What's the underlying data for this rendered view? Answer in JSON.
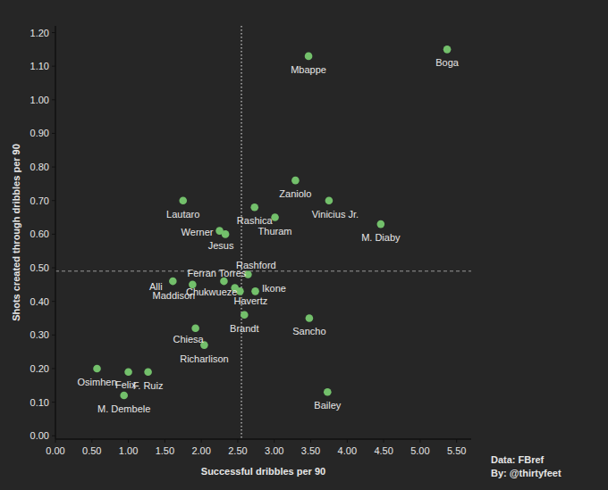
{
  "chart_data": {
    "type": "scatter",
    "x_label": "Successful dribbles per 90",
    "y_label": "Shots created through dribbles per 90",
    "annotations": [
      "Data: FBref",
      "By: @thirtyfeet"
    ],
    "labels": [
      "Boga",
      "Mbappe",
      "Zaniolo",
      "Vinicius Jr.",
      "Rashica",
      "Thuram",
      "M. Diaby",
      "Lautaro",
      "Werner",
      "Jesus",
      "Rashford",
      "Alli",
      "Maddison",
      "Ferran Torres",
      "Chukwueze",
      "Havertz",
      "Ikone",
      "Brandt",
      "Sancho",
      "Chiesa",
      "Richarlison",
      "Osimhen",
      "Felix",
      "F. Ruiz",
      "M. Dembele",
      "Bailey"
    ],
    "x": [
      5.37,
      3.47,
      3.29,
      3.75,
      2.73,
      3.01,
      4.46,
      1.75,
      2.25,
      2.33,
      2.64,
      1.61,
      1.88,
      2.31,
      2.46,
      2.53,
      2.74,
      2.59,
      3.48,
      1.92,
      2.04,
      0.57,
      1.0,
      1.27,
      0.94,
      3.73
    ],
    "values": [
      1.15,
      1.13,
      0.76,
      0.7,
      0.68,
      0.65,
      0.63,
      0.7,
      0.61,
      0.6,
      0.48,
      0.46,
      0.45,
      0.46,
      0.44,
      0.43,
      0.43,
      0.36,
      0.35,
      0.32,
      0.27,
      0.2,
      0.19,
      0.19,
      0.12,
      0.13
    ],
    "color": "#73c06b",
    "reference_x": 2.55,
    "reference_y": 0.49,
    "xlim": [
      0,
      5.7
    ],
    "ylim": [
      -0.01,
      1.22
    ],
    "xticks": [
      {
        "value": 0,
        "label": "0.00"
      },
      {
        "value": 0.5,
        "label": "0.50"
      },
      {
        "value": 1,
        "label": "1.00"
      },
      {
        "value": 1.5,
        "label": "1.50"
      },
      {
        "value": 2,
        "label": "2.00"
      },
      {
        "value": 2.5,
        "label": "2.50"
      },
      {
        "value": 3,
        "label": "3.00"
      },
      {
        "value": 3.5,
        "label": "3.50"
      },
      {
        "value": 4,
        "label": "4.00"
      },
      {
        "value": 4.5,
        "label": "4.50"
      },
      {
        "value": 5,
        "label": "5.00"
      },
      {
        "value": 5.5,
        "label": "5.50"
      }
    ],
    "yticks": [
      {
        "value": 0,
        "label": "0.00"
      },
      {
        "value": 0.1,
        "label": "0.10"
      },
      {
        "value": 0.2,
        "label": "0.20"
      },
      {
        "value": 0.3,
        "label": "0.30"
      },
      {
        "value": 0.4,
        "label": "0.40"
      },
      {
        "value": 0.5,
        "label": "0.50"
      },
      {
        "value": 0.6,
        "label": "0.60"
      },
      {
        "value": 0.7,
        "label": "0.70"
      },
      {
        "value": 0.8,
        "label": "0.80"
      },
      {
        "value": 0.9,
        "label": "0.90"
      },
      {
        "value": 1,
        "label": "1.00"
      },
      {
        "value": 1.1,
        "label": "1.10"
      },
      {
        "value": 1.2,
        "label": "1.20"
      }
    ],
    "grid": false
  }
}
